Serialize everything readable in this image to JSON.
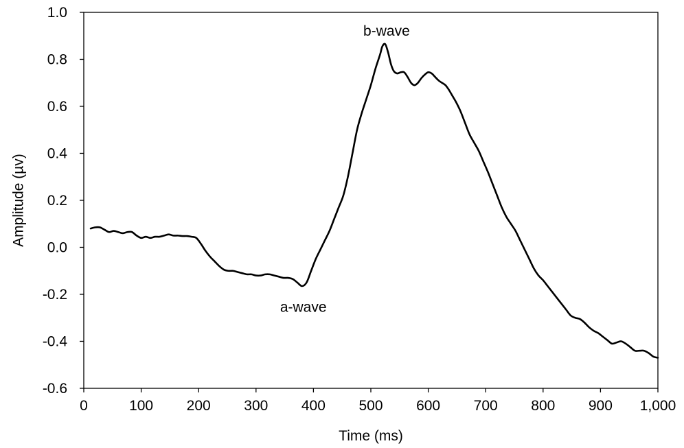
{
  "chart_data": {
    "type": "line",
    "title": "",
    "xlabel": "Time (ms)",
    "ylabel": "Amplitude (µv)",
    "xlim": [
      0,
      1000
    ],
    "ylim": [
      -0.6,
      1.0
    ],
    "grid": false,
    "legend": "none",
    "x_ticks": [
      0,
      100,
      200,
      300,
      400,
      500,
      600,
      700,
      800,
      900,
      1000
    ],
    "x_tick_labels": [
      "0",
      "100",
      "200",
      "300",
      "400",
      "500",
      "600",
      "700",
      "800",
      "900",
      "1,000"
    ],
    "y_ticks": [
      -0.6,
      -0.4,
      -0.2,
      0.0,
      0.2,
      0.4,
      0.6,
      0.8,
      1.0
    ],
    "y_tick_labels": [
      "-0.6",
      "-0.4",
      "-0.2",
      "0.0",
      "0.2",
      "0.4",
      "0.6",
      "0.8",
      "1.0"
    ],
    "annotations": [
      {
        "text": "a-wave",
        "x": 380,
        "y": -0.17
      },
      {
        "text": "b-wave",
        "x": 525,
        "y": 0.86
      }
    ],
    "series": [
      {
        "color": "#000000",
        "x": [
          12,
          20,
          28,
          36,
          44,
          52,
          60,
          68,
          76,
          84,
          92,
          100,
          108,
          116,
          124,
          132,
          140,
          148,
          156,
          164,
          172,
          180,
          188,
          196,
          204,
          212,
          220,
          228,
          236,
          244,
          252,
          260,
          268,
          276,
          284,
          292,
          300,
          308,
          316,
          324,
          332,
          340,
          348,
          356,
          364,
          372,
          380,
          388,
          396,
          404,
          412,
          420,
          428,
          436,
          444,
          452,
          460,
          468,
          476,
          484,
          492,
          500,
          508,
          516,
          520,
          525,
          530,
          535,
          540,
          546,
          552,
          558,
          564,
          570,
          576,
          582,
          588,
          594,
          600,
          606,
          612,
          618,
          624,
          630,
          636,
          642,
          648,
          656,
          664,
          672,
          680,
          688,
          696,
          704,
          712,
          720,
          728,
          736,
          744,
          752,
          760,
          768,
          776,
          784,
          792,
          800,
          808,
          816,
          824,
          832,
          840,
          848,
          856,
          864,
          872,
          880,
          888,
          896,
          904,
          912,
          920,
          928,
          936,
          944,
          952,
          960,
          968,
          976,
          984,
          992,
          1000
        ],
        "y": [
          0.08,
          0.085,
          0.085,
          0.075,
          0.065,
          0.07,
          0.065,
          0.06,
          0.065,
          0.065,
          0.05,
          0.04,
          0.045,
          0.04,
          0.045,
          0.045,
          0.05,
          0.055,
          0.05,
          0.05,
          0.048,
          0.048,
          0.045,
          0.04,
          0.015,
          -0.015,
          -0.04,
          -0.06,
          -0.08,
          -0.095,
          -0.1,
          -0.1,
          -0.105,
          -0.11,
          -0.115,
          -0.115,
          -0.12,
          -0.12,
          -0.115,
          -0.115,
          -0.12,
          -0.125,
          -0.13,
          -0.13,
          -0.135,
          -0.15,
          -0.165,
          -0.15,
          -0.1,
          -0.05,
          -0.01,
          0.03,
          0.07,
          0.12,
          0.17,
          0.22,
          0.3,
          0.4,
          0.5,
          0.57,
          0.63,
          0.69,
          0.76,
          0.82,
          0.855,
          0.865,
          0.83,
          0.78,
          0.75,
          0.74,
          0.745,
          0.745,
          0.725,
          0.7,
          0.69,
          0.7,
          0.72,
          0.735,
          0.745,
          0.74,
          0.725,
          0.71,
          0.7,
          0.69,
          0.67,
          0.645,
          0.62,
          0.58,
          0.53,
          0.48,
          0.445,
          0.41,
          0.365,
          0.32,
          0.27,
          0.22,
          0.17,
          0.13,
          0.1,
          0.07,
          0.03,
          -0.01,
          -0.05,
          -0.09,
          -0.12,
          -0.14,
          -0.165,
          -0.19,
          -0.215,
          -0.24,
          -0.265,
          -0.29,
          -0.3,
          -0.305,
          -0.32,
          -0.34,
          -0.355,
          -0.365,
          -0.38,
          -0.395,
          -0.41,
          -0.405,
          -0.4,
          -0.41,
          -0.425,
          -0.44,
          -0.44,
          -0.44,
          -0.45,
          -0.465,
          -0.47
        ]
      }
    ]
  }
}
